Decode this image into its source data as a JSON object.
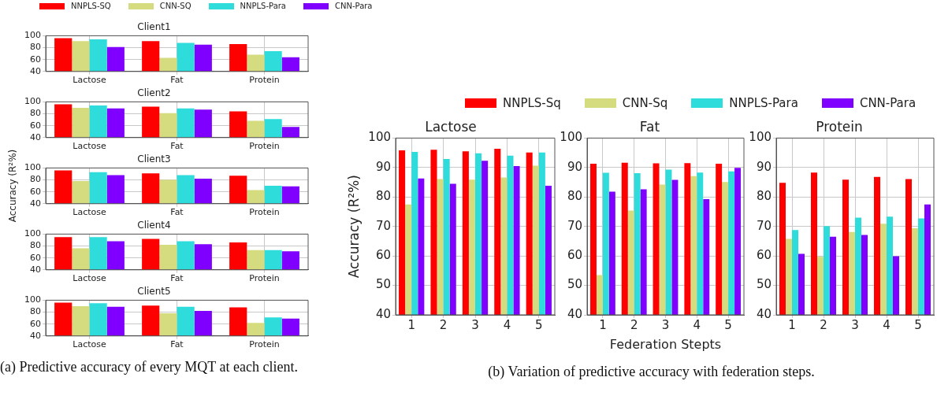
{
  "chart_data": [
    {
      "type": "bar",
      "title": "Client1",
      "categories": [
        "Lactose",
        "Fat",
        "Protein"
      ],
      "legend": "top",
      "ylim": [
        40,
        100
      ],
      "yticks": [
        40,
        60,
        80,
        100
      ],
      "grid": true,
      "series": [
        {
          "name": "NNPLS-SQ",
          "color": "#ff0000",
          "values": [
            96,
            91,
            86
          ]
        },
        {
          "name": "CNN-SQ",
          "color": "#d4dc7f",
          "values": [
            91,
            63,
            68
          ]
        },
        {
          "name": "NNPLS-Para",
          "color": "#2edcdc",
          "values": [
            94,
            88,
            74
          ]
        },
        {
          "name": "CNN-Para",
          "color": "#7f00ff",
          "values": [
            81,
            85,
            64
          ]
        }
      ]
    },
    {
      "type": "bar",
      "title": "Client2",
      "categories": [
        "Lactose",
        "Fat",
        "Protein"
      ],
      "ylim": [
        40,
        100
      ],
      "yticks": [
        40,
        60,
        80,
        100
      ],
      "grid": true,
      "series": [
        {
          "color": "#ff0000",
          "values": [
            96,
            92,
            84
          ]
        },
        {
          "color": "#d4dc7f",
          "values": [
            90,
            81,
            68
          ]
        },
        {
          "color": "#2edcdc",
          "values": [
            94,
            89,
            71
          ]
        },
        {
          "color": "#7f00ff",
          "values": [
            89,
            87,
            58
          ]
        }
      ]
    },
    {
      "type": "bar",
      "title": "Client3",
      "ylabel": "Accuracy (R²%)",
      "categories": [
        "Lactose",
        "Fat",
        "Protein"
      ],
      "ylim": [
        40,
        100
      ],
      "yticks": [
        40,
        60,
        80,
        100
      ],
      "grid": true,
      "series": [
        {
          "color": "#ff0000",
          "values": [
            96,
            91,
            87
          ]
        },
        {
          "color": "#d4dc7f",
          "values": [
            78,
            80,
            63
          ]
        },
        {
          "color": "#2edcdc",
          "values": [
            93,
            88,
            70
          ]
        },
        {
          "color": "#7f00ff",
          "values": [
            88,
            82,
            69
          ]
        }
      ]
    },
    {
      "type": "bar",
      "title": "Client4",
      "categories": [
        "Lactose",
        "Fat",
        "Protein"
      ],
      "ylim": [
        40,
        100
      ],
      "yticks": [
        40,
        60,
        80,
        100
      ],
      "grid": true,
      "series": [
        {
          "color": "#ff0000",
          "values": [
            95,
            92,
            86
          ]
        },
        {
          "color": "#d4dc7f",
          "values": [
            76,
            82,
            73
          ]
        },
        {
          "color": "#2edcdc",
          "values": [
            95,
            88,
            73
          ]
        },
        {
          "color": "#7f00ff",
          "values": [
            88,
            83,
            71
          ]
        }
      ]
    },
    {
      "type": "bar",
      "title": "Client5",
      "categories": [
        "Lactose",
        "Fat",
        "Protein"
      ],
      "ylim": [
        40,
        100
      ],
      "yticks": [
        40,
        60,
        80,
        100
      ],
      "grid": true,
      "annotations": [
        "(a) Predictive accuracy of every MQT at each client."
      ],
      "series": [
        {
          "color": "#ff0000",
          "values": [
            96,
            91,
            88
          ]
        },
        {
          "color": "#d4dc7f",
          "values": [
            90,
            78,
            62
          ]
        },
        {
          "color": "#2edcdc",
          "values": [
            95,
            89,
            71
          ]
        },
        {
          "color": "#7f00ff",
          "values": [
            89,
            82,
            69
          ]
        }
      ]
    },
    {
      "type": "bar",
      "title": "Lactose",
      "ylabel": "Accuracy (R²%)",
      "categories": [
        "1",
        "2",
        "3",
        "4",
        "5"
      ],
      "legend": "top",
      "ylim": [
        40,
        100
      ],
      "yticks": [
        40,
        50,
        60,
        70,
        80,
        90,
        100
      ],
      "grid": true,
      "series": [
        {
          "name": "NNPLS-Sq",
          "color": "#ff0000",
          "values": [
            95.8,
            96.0,
            95.5,
            96.4,
            95.1
          ]
        },
        {
          "name": "CNN-Sq",
          "color": "#d4dc7f",
          "values": [
            77.5,
            86.1,
            85.9,
            86.6,
            90.6
          ]
        },
        {
          "name": "NNPLS-Para",
          "color": "#2edcdc",
          "values": [
            95.3,
            92.9,
            94.8,
            94.0,
            95.1
          ]
        },
        {
          "name": "CNN-Para",
          "color": "#7f00ff",
          "values": [
            86.3,
            84.5,
            92.3,
            90.5,
            83.8
          ]
        }
      ]
    },
    {
      "type": "bar",
      "title": "Fat",
      "xlabel": "Federation Stepts",
      "categories": [
        "1",
        "2",
        "3",
        "4",
        "5"
      ],
      "ylim": [
        40,
        100
      ],
      "yticks": [
        40,
        50,
        60,
        70,
        80,
        90,
        100
      ],
      "grid": true,
      "annotations": [
        "(b) Variation of predictive accuracy with federation steps."
      ],
      "series": [
        {
          "color": "#ff0000",
          "values": [
            91.3,
            91.6,
            91.4,
            91.5,
            91.3
          ]
        },
        {
          "color": "#d4dc7f",
          "values": [
            53.5,
            75.4,
            84.2,
            87.1,
            85.1
          ]
        },
        {
          "color": "#2edcdc",
          "values": [
            88.2,
            88.1,
            89.3,
            88.3,
            88.7
          ]
        },
        {
          "color": "#7f00ff",
          "values": [
            81.8,
            82.6,
            85.8,
            79.3,
            89.9
          ]
        }
      ]
    },
    {
      "type": "bar",
      "title": "Protein",
      "categories": [
        "1",
        "2",
        "3",
        "4",
        "5"
      ],
      "ylim": [
        40,
        100
      ],
      "yticks": [
        40,
        50,
        60,
        70,
        80,
        90,
        100
      ],
      "grid": true,
      "series": [
        {
          "color": "#ff0000",
          "values": [
            84.8,
            88.3,
            85.9,
            86.8,
            86.1
          ]
        },
        {
          "color": "#d4dc7f",
          "values": [
            65.8,
            59.7,
            68.1,
            70.9,
            69.4
          ]
        },
        {
          "color": "#2edcdc",
          "values": [
            68.8,
            70.1,
            73.0,
            73.3,
            72.7
          ]
        },
        {
          "color": "#7f00ff",
          "values": [
            60.7,
            66.5,
            67.1,
            59.9,
            77.5
          ]
        }
      ]
    }
  ]
}
